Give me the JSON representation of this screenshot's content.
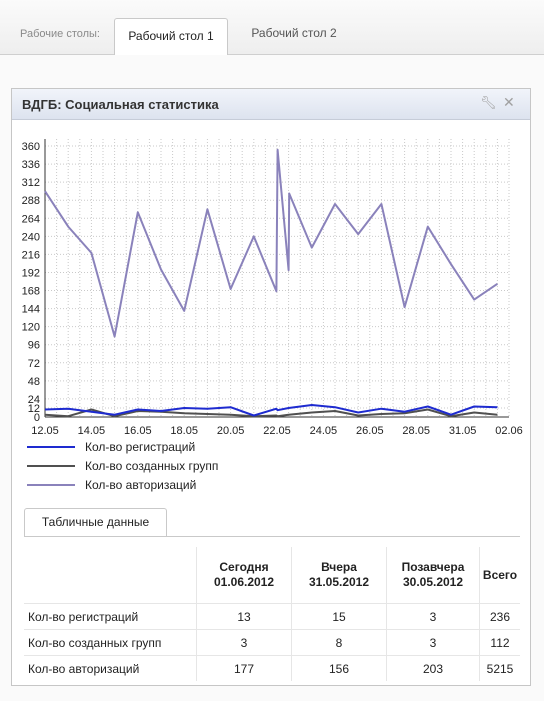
{
  "tabs": {
    "label": "Рабочие столы:",
    "items": [
      {
        "label": "Рабочий стол 1",
        "active": true
      },
      {
        "label": "Рабочий стол 2",
        "active": false
      }
    ]
  },
  "widget": {
    "title": "ВДГБ: Социальная статистика",
    "icons": [
      "wrench-icon",
      "close-icon"
    ]
  },
  "chart_data": {
    "type": "line",
    "ylim": [
      0,
      372
    ],
    "yticks": [
      0,
      12,
      24,
      48,
      72,
      96,
      120,
      144,
      168,
      192,
      216,
      240,
      264,
      288,
      312,
      336,
      360
    ],
    "xtick_labels": [
      "12.05",
      "14.05",
      "16.05",
      "18.05",
      "20.05",
      "22.05",
      "24.05",
      "26.05",
      "28.05",
      "31.05",
      "02.06"
    ],
    "grid": true,
    "legend_position": "bottom",
    "series": [
      {
        "name": "Кол-во регистраций",
        "color": "#1e2bd0",
        "points": [
          [
            0,
            10
          ],
          [
            2,
            11
          ],
          [
            4,
            7
          ],
          [
            6,
            3
          ],
          [
            8,
            10
          ],
          [
            10,
            8
          ],
          [
            12,
            12
          ],
          [
            14,
            11
          ],
          [
            16,
            13
          ],
          [
            18,
            2
          ],
          [
            19.95,
            11
          ],
          [
            20.05,
            9
          ],
          [
            21,
            12
          ],
          [
            23,
            16
          ],
          [
            25,
            13
          ],
          [
            27,
            6
          ],
          [
            29,
            11
          ],
          [
            31,
            7
          ],
          [
            33,
            14
          ],
          [
            35,
            3
          ],
          [
            37,
            14
          ],
          [
            39,
            13
          ]
        ]
      },
      {
        "name": "Кол-во созданных групп",
        "color": "#505050",
        "points": [
          [
            0,
            3
          ],
          [
            2,
            1
          ],
          [
            4,
            10
          ],
          [
            6,
            1
          ],
          [
            8,
            8
          ],
          [
            10,
            7
          ],
          [
            12,
            5
          ],
          [
            14,
            4
          ],
          [
            16,
            3
          ],
          [
            18,
            1
          ],
          [
            19.95,
            2
          ],
          [
            20.05,
            1
          ],
          [
            21,
            3
          ],
          [
            23,
            6
          ],
          [
            25,
            8
          ],
          [
            27,
            2
          ],
          [
            29,
            4
          ],
          [
            31,
            5
          ],
          [
            33,
            10
          ],
          [
            35,
            1
          ],
          [
            37,
            6
          ],
          [
            39,
            3
          ]
        ]
      },
      {
        "name": "Кол-во авторизаций",
        "color": "#8a82bb",
        "points": [
          [
            0,
            300
          ],
          [
            2,
            253
          ],
          [
            4,
            218
          ],
          [
            6,
            107
          ],
          [
            8,
            272
          ],
          [
            10,
            196
          ],
          [
            12,
            141
          ],
          [
            14,
            276
          ],
          [
            16,
            170
          ],
          [
            18,
            240
          ],
          [
            19.95,
            167
          ],
          [
            20.05,
            355
          ],
          [
            21,
            195
          ],
          [
            21.05,
            297
          ],
          [
            23,
            225
          ],
          [
            25,
            283
          ],
          [
            27,
            243
          ],
          [
            29,
            283
          ],
          [
            31,
            146
          ],
          [
            33,
            253
          ],
          [
            35,
            203
          ],
          [
            37,
            156
          ],
          [
            39,
            177
          ]
        ]
      }
    ]
  },
  "table": {
    "tab_label": "Табличные данные",
    "headers": [
      {
        "line1": "",
        "line2": ""
      },
      {
        "line1": "Сегодня",
        "line2": "01.06.2012"
      },
      {
        "line1": "Вчера",
        "line2": "31.05.2012"
      },
      {
        "line1": "Позавчера",
        "line2": "30.05.2012"
      },
      {
        "line1": "Всего",
        "line2": ""
      }
    ],
    "rows": [
      {
        "label": "Кол-во регистраций",
        "today": "13",
        "yesterday": "15",
        "day_before": "3",
        "total": "236"
      },
      {
        "label": "Кол-во созданных групп",
        "today": "3",
        "yesterday": "8",
        "day_before": "3",
        "total": "112"
      },
      {
        "label": "Кол-во авторизаций",
        "today": "177",
        "yesterday": "156",
        "day_before": "203",
        "total": "5215"
      }
    ]
  }
}
